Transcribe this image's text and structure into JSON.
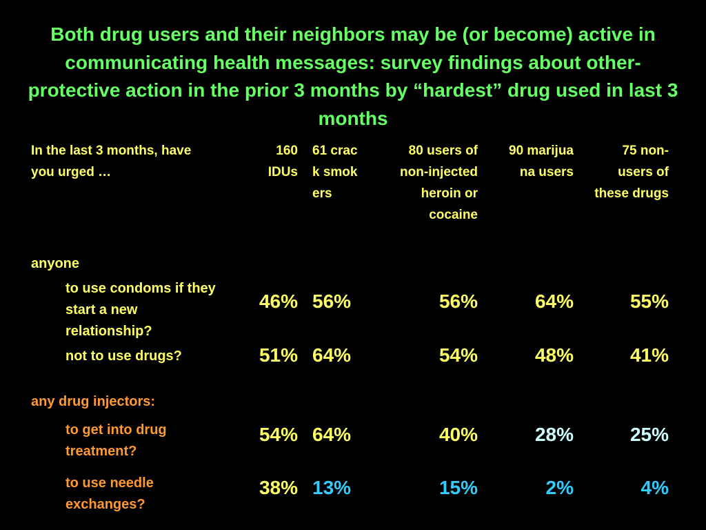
{
  "title": "Both drug users and their neighbors may be (or become) active in communicating health messages: survey findings about other-protective action in the prior 3 months by “hardest” drug used in last 3 months",
  "table": {
    "header": [
      "In the last 3 months, have you urged …",
      "160 IDUs",
      "61 crack smokers",
      "80 users of non-injected heroin or cocaine",
      "90 marijuana users",
      "75 non-users of these drugs"
    ],
    "sections": [
      {
        "label": "anyone",
        "rows": [
          {
            "label": "to use condoms if they start a new relationship?",
            "values": [
              "46%",
              "56%",
              "56%",
              "64%",
              "55%"
            ]
          },
          {
            "label": "not to use drugs?",
            "values": [
              "51%",
              "64%",
              "54%",
              "48%",
              "41%"
            ]
          }
        ]
      },
      {
        "label": "any drug injectors:",
        "rows": [
          {
            "label": "to get into drug treatment?",
            "values": [
              "54%",
              "64%",
              "40%",
              "28%",
              "25%"
            ]
          },
          {
            "label": "to use needle exchanges?",
            "values": [
              "38%",
              "13%",
              "15%",
              "2%",
              "4%"
            ]
          }
        ]
      }
    ]
  }
}
